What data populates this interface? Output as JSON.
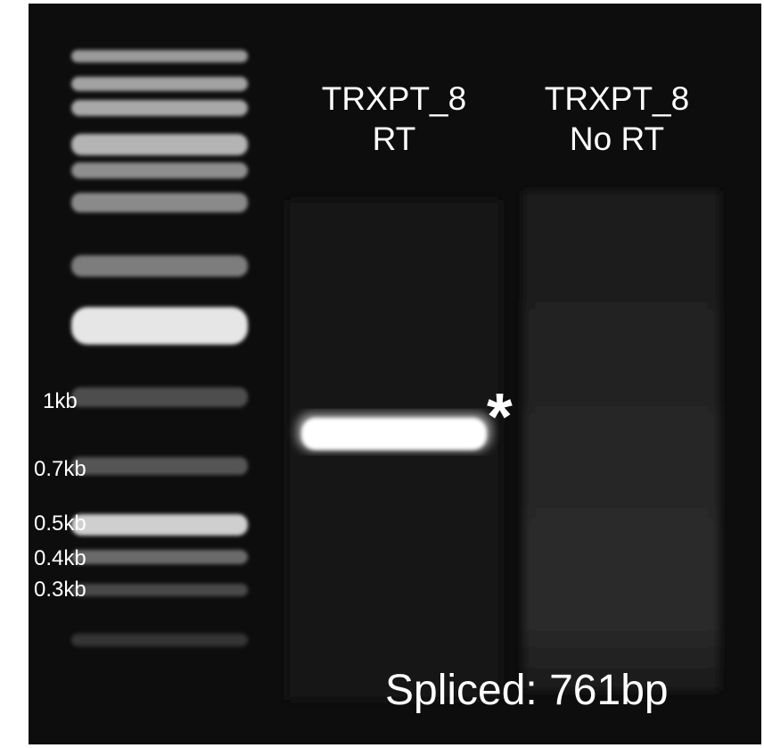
{
  "lanes": [
    {
      "line1": "TRXPT_8",
      "line2": "RT"
    },
    {
      "line1": "TRXPT_8",
      "line2": "No RT"
    }
  ],
  "markers": [
    "1kb",
    "0.7kb",
    "0.5kb",
    "0.4kb",
    "0.3kb"
  ],
  "asterisk": "*",
  "caption": "Spliced: 761bp",
  "colors": {
    "gel_background": "#0d0d0d",
    "band": "#ffffff",
    "text": "#ffffff"
  }
}
